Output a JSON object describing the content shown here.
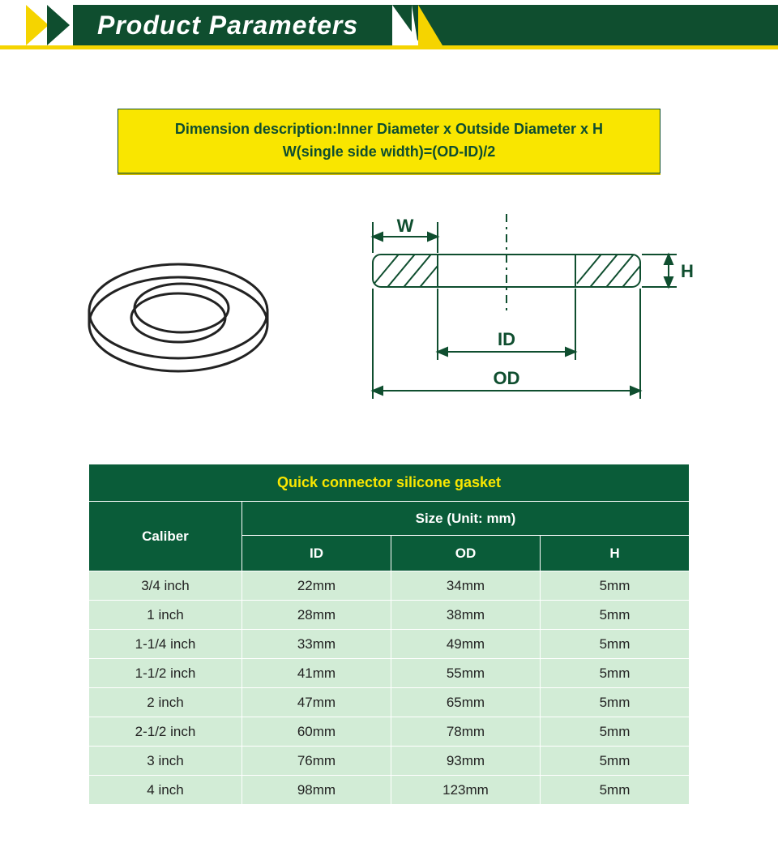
{
  "banner": {
    "title": "Product Parameters"
  },
  "description": {
    "line1": "Dimension description:Inner Diameter x Outside Diameter x H",
    "line2": "W(single side width)=(OD-ID)/2"
  },
  "diagram": {
    "stroke": "#0f4e2f",
    "label_w": "W",
    "label_h": "H",
    "label_id": "ID",
    "label_od": "OD"
  },
  "table": {
    "title": "Quick connector silicone gasket",
    "caliber_header": "Caliber",
    "size_header": "Size  (Unit: mm)",
    "columns": [
      "ID",
      "OD",
      "H"
    ],
    "rows": [
      {
        "caliber": "3/4 inch",
        "id": "22mm",
        "od": "34mm",
        "h": "5mm"
      },
      {
        "caliber": "1 inch",
        "id": "28mm",
        "od": "38mm",
        "h": "5mm"
      },
      {
        "caliber": "1-1/4 inch",
        "id": "33mm",
        "od": "49mm",
        "h": "5mm"
      },
      {
        "caliber": "1-1/2 inch",
        "id": "41mm",
        "od": "55mm",
        "h": "5mm"
      },
      {
        "caliber": "2 inch",
        "id": "47mm",
        "od": "65mm",
        "h": "5mm"
      },
      {
        "caliber": "2-1/2 inch",
        "id": "60mm",
        "od": "78mm",
        "h": "5mm"
      },
      {
        "caliber": "3 inch",
        "id": "76mm",
        "od": "93mm",
        "h": "5mm"
      },
      {
        "caliber": "4 inch",
        "id": "98mm",
        "od": "123mm",
        "h": "5mm"
      }
    ],
    "header_bg": "#0a5c39",
    "header_fg": "#ffffff",
    "title_fg": "#f9e600",
    "row_bg": "#d2ecd6",
    "border_color": "#ffffff"
  },
  "colors": {
    "brand_green": "#0f4e2f",
    "brand_yellow": "#f5d400",
    "bright_yellow": "#f9e600"
  }
}
